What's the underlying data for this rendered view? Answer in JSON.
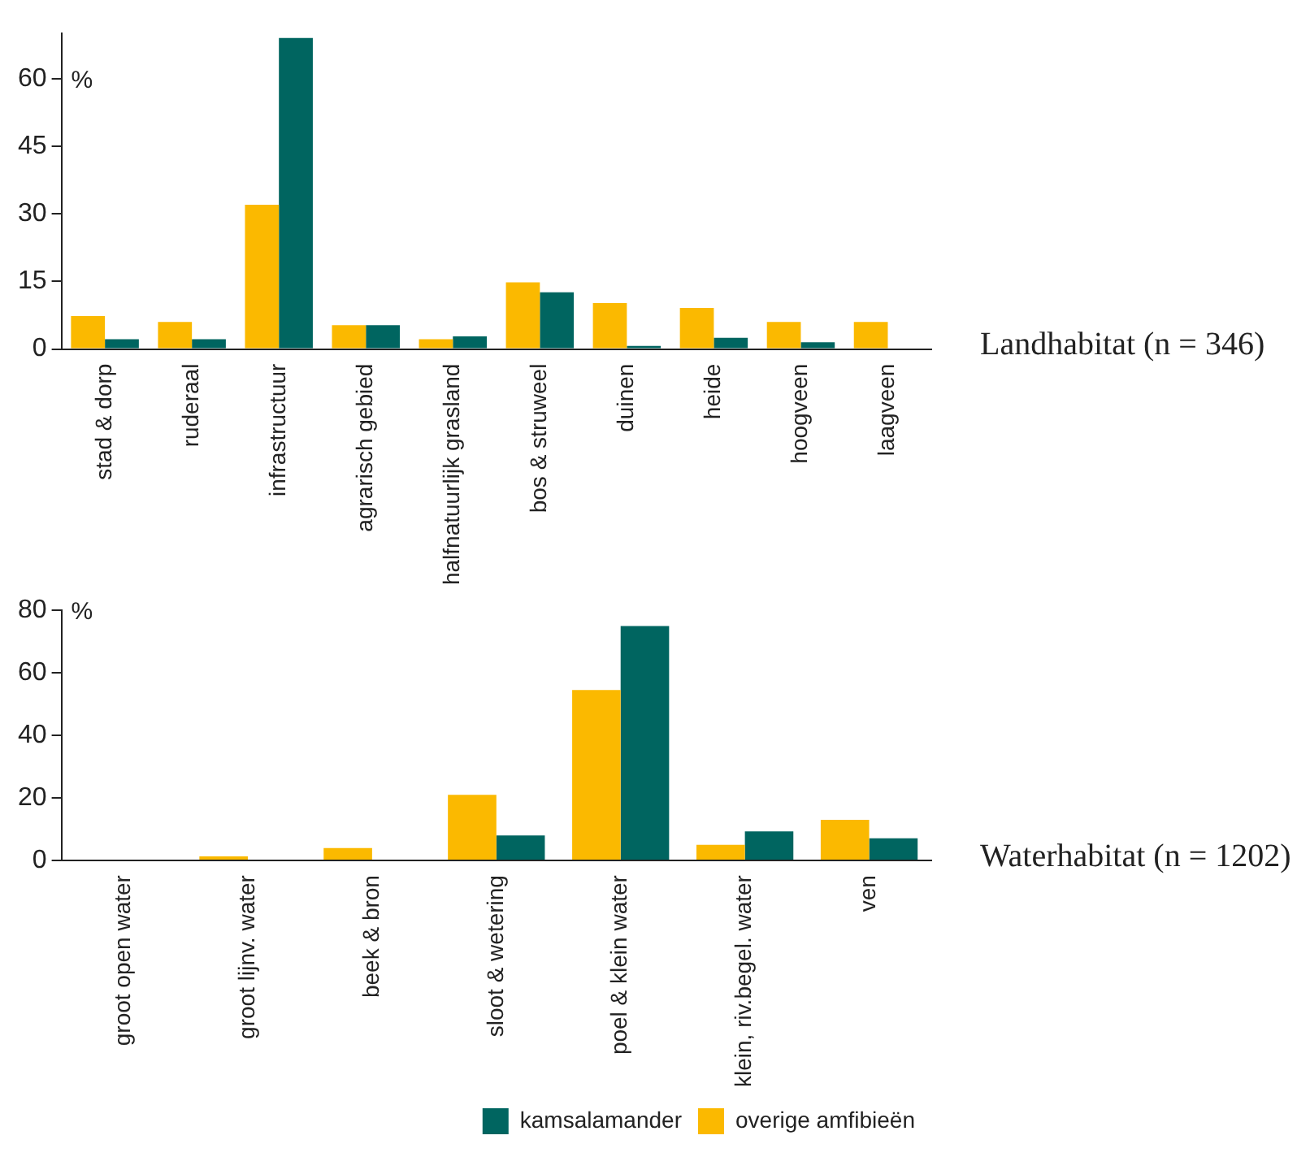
{
  "chart_data": [
    {
      "type": "bar",
      "annotations": [
        "Landhabitat (n = 346)"
      ],
      "ylabel": "%",
      "categories": [
        "stad & dorp",
        "ruderaal",
        "infrastructuur",
        "agrarisch gebied",
        "halfnatuurlijk grasland",
        "bos & struweel",
        "duinen",
        "heide",
        "hoogveen",
        "laagveen"
      ],
      "series": [
        {
          "color": "#fbb900",
          "values": [
            7.3,
            6,
            32,
            5.3,
            2.2,
            14.8,
            10.2,
            9.1,
            6,
            6
          ]
        },
        {
          "color": "#006560",
          "values": [
            2.2,
            2.2,
            69,
            5.3,
            2.8,
            12.6,
            0.7,
            2.5,
            1.5,
            0
          ]
        }
      ],
      "ylim": [
        0,
        70
      ],
      "yticks": [
        0,
        15,
        30,
        45,
        60
      ],
      "grid": false,
      "legend": false
    },
    {
      "type": "bar",
      "annotations": [
        "Waterhabitat (n = 1202)"
      ],
      "ylabel": "%",
      "categories": [
        "groot open water",
        "groot lijnv. water",
        "beek & bron",
        "sloot & wetering",
        "poel & klein water",
        "klein, riv.begel. water",
        "ven"
      ],
      "series": [
        {
          "name": "overige amfibieën",
          "color": "#fbb900",
          "values": [
            0,
            1.3,
            4,
            21,
            54.5,
            5,
            13
          ]
        },
        {
          "name": "kamsalamander",
          "color": "#006560",
          "values": [
            0,
            0,
            0,
            8,
            75,
            9.3,
            7.1
          ]
        }
      ],
      "ylim": [
        0,
        80
      ],
      "yticks": [
        0,
        20,
        40,
        60,
        80
      ],
      "grid": false,
      "legend": "bottom right"
    }
  ]
}
